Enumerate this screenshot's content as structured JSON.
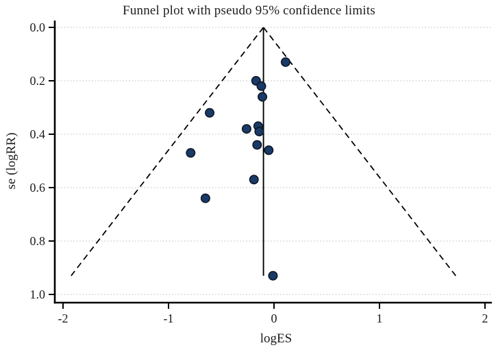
{
  "figure": {
    "title": "Funnel plot with pseudo 95% confidence limits",
    "x_axis_label": "logES",
    "y_axis_label": "se (logRR)"
  },
  "chart_data": {
    "type": "scatter",
    "title": "Funnel plot with pseudo 95% confidence limits",
    "xlabel": "logES",
    "ylabel": "se (logRR)",
    "x_ticks": [
      -2,
      -1,
      0,
      1,
      2
    ],
    "y_ticks": [
      0.0,
      0.2,
      0.4,
      0.6,
      0.8,
      1.0
    ],
    "xlim": [
      -2.08,
      2.07
    ],
    "ylim": [
      0,
      1.03
    ],
    "y_axis_reversed": true,
    "grid": "horizontal-dotted",
    "legend": "none",
    "points": [
      {
        "logES": 0.11,
        "se": 0.13
      },
      {
        "logES": -0.17,
        "se": 0.2
      },
      {
        "logES": -0.12,
        "se": 0.22
      },
      {
        "logES": -0.11,
        "se": 0.26
      },
      {
        "logES": -0.61,
        "se": 0.32
      },
      {
        "logES": -0.15,
        "se": 0.37
      },
      {
        "logES": -0.26,
        "se": 0.38
      },
      {
        "logES": -0.14,
        "se": 0.39
      },
      {
        "logES": -0.16,
        "se": 0.44
      },
      {
        "logES": -0.05,
        "se": 0.46
      },
      {
        "logES": -0.79,
        "se": 0.47
      },
      {
        "logES": -0.19,
        "se": 0.57
      },
      {
        "logES": -0.65,
        "se": 0.64
      },
      {
        "logES": -0.01,
        "se": 0.93
      }
    ],
    "funnel": {
      "center_logES": -0.1,
      "z": 1.96,
      "se_top": 0,
      "se_max": 0.93,
      "ci_line_style": "dashed",
      "center_line_style": "solid"
    },
    "colors": {
      "marker_fill": "#1a3a68",
      "marker_edge": "#0d1726",
      "axis": "#000000",
      "funnel_line": "#000000",
      "grid": "#c8c8c8",
      "background": "#ffffff"
    }
  }
}
